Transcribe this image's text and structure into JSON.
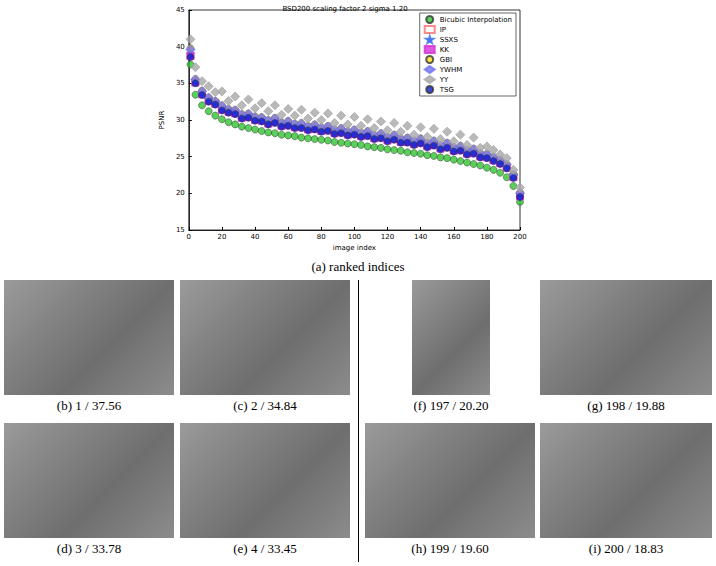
{
  "chart_data": {
    "type": "scatter",
    "title": "BSD200 scaling factor 2 sigma 1.20",
    "x_label": "image index",
    "y_label": "PSNR",
    "xlim": [
      0,
      200
    ],
    "xticks": [
      0,
      20,
      40,
      60,
      80,
      100,
      120,
      140,
      160,
      180,
      200
    ],
    "ylim": [
      15,
      45
    ],
    "yticks": [
      15,
      20,
      25,
      30,
      35,
      40,
      45
    ],
    "grid": false,
    "legend": "upper right",
    "x": [
      1,
      4,
      8,
      12,
      16,
      20,
      24,
      28,
      32,
      36,
      40,
      44,
      48,
      52,
      56,
      60,
      64,
      68,
      72,
      76,
      80,
      84,
      88,
      92,
      96,
      100,
      104,
      108,
      112,
      116,
      120,
      124,
      128,
      132,
      136,
      140,
      144,
      148,
      152,
      156,
      160,
      164,
      168,
      172,
      176,
      180,
      184,
      188,
      192,
      196,
      200
    ],
    "series": [
      {
        "name": "Bicubic Interpolation",
        "color": "#2fc42f",
        "marker": "circle",
        "values": [
          37.56,
          33.45,
          32.0,
          31.2,
          30.6,
          30.1,
          29.7,
          29.4,
          29.1,
          28.9,
          28.7,
          28.5,
          28.3,
          28.2,
          28.0,
          27.9,
          27.8,
          27.6,
          27.5,
          27.4,
          27.3,
          27.2,
          27.0,
          26.9,
          26.8,
          26.7,
          26.6,
          26.4,
          26.3,
          26.2,
          26.0,
          25.9,
          25.8,
          25.6,
          25.5,
          25.4,
          25.2,
          25.1,
          24.9,
          24.8,
          24.6,
          24.4,
          24.2,
          24.0,
          23.8,
          23.5,
          23.2,
          22.8,
          22.2,
          21.0,
          18.83
        ]
      },
      {
        "name": "IP",
        "color": "#ff6b6b",
        "marker": "square",
        "values": [
          38.8,
          35.2,
          33.6,
          32.7,
          32.3,
          31.5,
          31.2,
          31.0,
          30.4,
          30.5,
          30.1,
          30.0,
          29.6,
          29.8,
          29.3,
          29.4,
          29.1,
          29.1,
          28.8,
          28.9,
          28.6,
          28.7,
          28.3,
          28.4,
          28.1,
          28.2,
          27.9,
          28.0,
          27.6,
          27.7,
          27.3,
          27.5,
          27.1,
          27.1,
          26.8,
          27.0,
          26.5,
          26.7,
          26.2,
          26.4,
          25.9,
          26.0,
          25.5,
          25.6,
          25.1,
          25.0,
          24.6,
          24.2,
          23.6,
          22.3,
          19.7
        ]
      },
      {
        "name": "SSXS",
        "color": "#3a6cf0",
        "marker": "star",
        "values": [
          39.0,
          35.4,
          33.8,
          32.9,
          32.5,
          31.7,
          31.4,
          31.2,
          30.6,
          30.7,
          30.3,
          30.2,
          29.8,
          30.0,
          29.5,
          29.6,
          29.3,
          29.3,
          29.0,
          29.1,
          28.8,
          28.9,
          28.5,
          28.6,
          28.3,
          28.4,
          28.1,
          28.2,
          27.8,
          27.9,
          27.5,
          27.7,
          27.3,
          27.3,
          27.0,
          27.2,
          26.7,
          26.9,
          26.4,
          26.6,
          26.1,
          26.2,
          25.7,
          25.8,
          25.3,
          25.2,
          24.8,
          24.4,
          23.8,
          22.5,
          19.9
        ]
      },
      {
        "name": "KK",
        "color": "#d62fd6",
        "marker": "square",
        "values": [
          38.7,
          35.1,
          33.5,
          32.6,
          32.2,
          31.4,
          31.1,
          30.9,
          30.3,
          30.4,
          30.0,
          29.9,
          29.5,
          29.7,
          29.2,
          29.3,
          29.0,
          29.0,
          28.7,
          28.8,
          28.5,
          28.6,
          28.2,
          28.3,
          28.0,
          28.1,
          27.8,
          27.9,
          27.5,
          27.6,
          27.2,
          27.4,
          27.0,
          27.0,
          26.7,
          26.9,
          26.4,
          26.6,
          26.1,
          26.3,
          25.8,
          25.9,
          25.4,
          25.5,
          25.0,
          24.9,
          24.5,
          24.1,
          23.5,
          22.2,
          19.6
        ]
      },
      {
        "name": "GBI",
        "color": "#ffdd1a",
        "marker": "circle",
        "values": [
          39.8,
          35.6,
          34.0,
          33.1,
          32.6,
          32.0,
          31.5,
          31.4,
          30.8,
          30.9,
          30.5,
          30.4,
          30.0,
          30.3,
          29.7,
          29.9,
          29.5,
          29.6,
          29.2,
          29.4,
          29.0,
          29.2,
          28.7,
          28.9,
          28.5,
          28.7,
          28.3,
          28.5,
          28.0,
          28.2,
          27.7,
          28.0,
          27.5,
          27.6,
          27.2,
          27.5,
          26.9,
          27.2,
          26.6,
          26.9,
          26.3,
          26.5,
          25.9,
          26.1,
          25.5,
          25.4,
          25.0,
          24.6,
          24.0,
          22.6,
          20.1
        ]
      },
      {
        "name": "YWHM",
        "color": "#7272f2",
        "marker": "diamond",
        "values": [
          39.6,
          35.5,
          33.9,
          33.0,
          32.5,
          31.9,
          31.4,
          31.3,
          30.7,
          30.8,
          30.4,
          30.3,
          29.9,
          30.2,
          29.6,
          29.8,
          29.4,
          29.5,
          29.1,
          29.3,
          28.9,
          29.1,
          28.6,
          28.8,
          28.4,
          28.6,
          28.2,
          28.4,
          27.9,
          28.1,
          27.6,
          27.9,
          27.4,
          27.5,
          27.1,
          27.4,
          26.8,
          27.1,
          26.5,
          26.8,
          26.2,
          26.4,
          25.8,
          26.0,
          25.4,
          25.3,
          24.9,
          24.5,
          23.9,
          22.5,
          20.0
        ]
      },
      {
        "name": "YY",
        "color": "#a8a8a8",
        "marker": "diamond",
        "values": [
          41.0,
          37.2,
          35.3,
          34.6,
          33.8,
          33.9,
          32.6,
          33.2,
          32.0,
          32.8,
          31.6,
          32.3,
          31.2,
          32.0,
          30.7,
          31.5,
          30.6,
          31.4,
          30.2,
          31.0,
          30.0,
          30.9,
          29.6,
          30.6,
          29.4,
          30.4,
          29.2,
          30.1,
          28.9,
          29.8,
          28.6,
          29.6,
          28.4,
          29.2,
          28.0,
          29.0,
          27.7,
          28.8,
          27.4,
          28.4,
          27.1,
          28.0,
          26.6,
          27.6,
          26.2,
          26.4,
          25.9,
          25.3,
          24.8,
          23.2,
          20.8
        ]
      },
      {
        "name": "TSG",
        "color": "#0a1fd0",
        "marker": "circle",
        "values": [
          38.6,
          35.0,
          33.4,
          32.5,
          32.1,
          31.3,
          31.0,
          30.8,
          30.2,
          30.3,
          29.9,
          29.8,
          29.4,
          29.6,
          29.1,
          29.2,
          28.9,
          28.9,
          28.6,
          28.7,
          28.4,
          28.5,
          28.1,
          28.2,
          27.9,
          28.0,
          27.7,
          27.8,
          27.4,
          27.5,
          27.1,
          27.3,
          26.9,
          26.9,
          26.6,
          26.8,
          26.3,
          26.5,
          26.0,
          26.2,
          25.7,
          25.8,
          25.3,
          25.4,
          24.9,
          24.8,
          24.4,
          24.0,
          23.4,
          22.1,
          19.5
        ]
      }
    ]
  },
  "figure": {
    "chart_caption": "(a) ranked indices",
    "panels": [
      {
        "caption": "(b) 1 / 37.56"
      },
      {
        "caption": "(c) 2 / 34.84"
      },
      {
        "caption": "(d) 3 / 33.78"
      },
      {
        "caption": "(e) 4 / 33.45"
      },
      {
        "caption": "(f) 197 / 20.20"
      },
      {
        "caption": "(g) 198 / 19.88"
      },
      {
        "caption": "(h) 199 / 19.60"
      },
      {
        "caption": "(i) 200 / 18.83"
      }
    ]
  }
}
